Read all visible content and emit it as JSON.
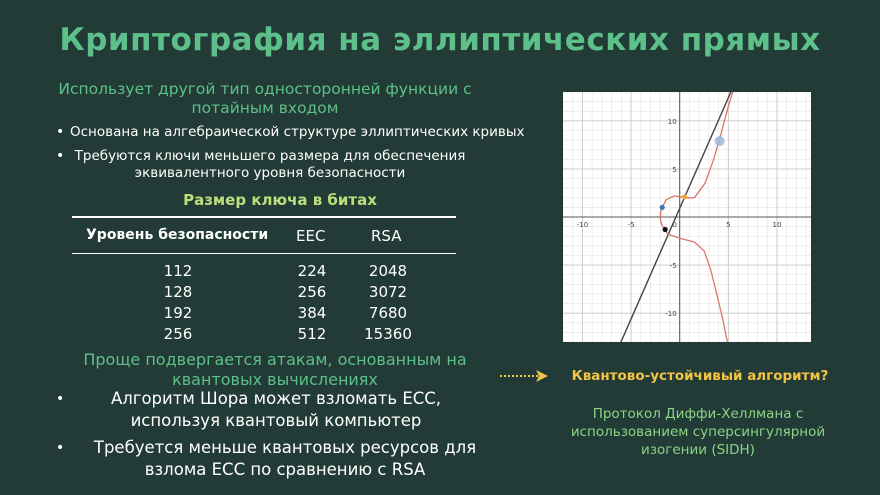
{
  "slide": {
    "title": "Криптография на эллиптических прямых",
    "subtitle": "Использует другой тип односторонней функции с потайным входом",
    "bullets": [
      "Основана на алгебраической структуре эллиптических кривых",
      "Требуются ключи меньшего размера для обеспечения эквивалентного уровня безопасности"
    ],
    "bullet_marker": "•"
  },
  "key_table": {
    "caption": "Размер ключа в битах",
    "headers": [
      "Уровень безопасности",
      "EEC",
      "RSA"
    ],
    "rows": [
      [
        "112",
        "224",
        "2048"
      ],
      [
        "128",
        "256",
        "3072"
      ],
      [
        "192",
        "384",
        "7680"
      ],
      [
        "256",
        "512",
        "15360"
      ]
    ]
  },
  "quantum": {
    "title": "Проще подвергается атакам, основанным на квантовых вычислениях",
    "bullets": [
      "Алгоритм Шора может взломать ECC, используя квантовый компьютер",
      "Требуется меньше квантовых ресурсов для взлома ECC по сравнению с RSA"
    ],
    "question": "Квантово-устойчивый алгоритм?",
    "answer": "Протокол Диффи-Хеллмана с использованием суперсингулярной изогении (SIDH)"
  },
  "colors": {
    "background": "#223b36",
    "accent_green": "#5dc08a",
    "caption_green": "#b9e07c",
    "question_yellow": "#f3c443",
    "answer_green": "#8bd486"
  },
  "chart_data": {
    "type": "line",
    "x_ticks": [
      -10,
      -5,
      0,
      5,
      10
    ],
    "y_ticks": [
      10,
      5,
      -5,
      -10
    ],
    "x_tick_labels": [
      "-10",
      "-5",
      "0",
      "5",
      "10"
    ],
    "y_tick_labels": [
      "10",
      "5",
      "-5",
      "-10"
    ],
    "xlim": [
      -12,
      13.5
    ],
    "ylim": [
      -13,
      13
    ],
    "grid": true,
    "series": [
      {
        "kind": "line",
        "slope": 2.3,
        "intercept": 0.9,
        "color": "#444444"
      },
      {
        "kind": "curve",
        "color": "#d9776a"
      }
    ],
    "points": [
      {
        "x": -1.8,
        "y": 1.0,
        "color": "#3f78b5"
      },
      {
        "x": -1.5,
        "y": -1.3,
        "color": "#111111"
      },
      {
        "x": 0.5,
        "y": 2.1,
        "color": "#f2a33c"
      },
      {
        "x": 4.1,
        "y": 7.9,
        "color": "#9bb8dc"
      }
    ]
  }
}
